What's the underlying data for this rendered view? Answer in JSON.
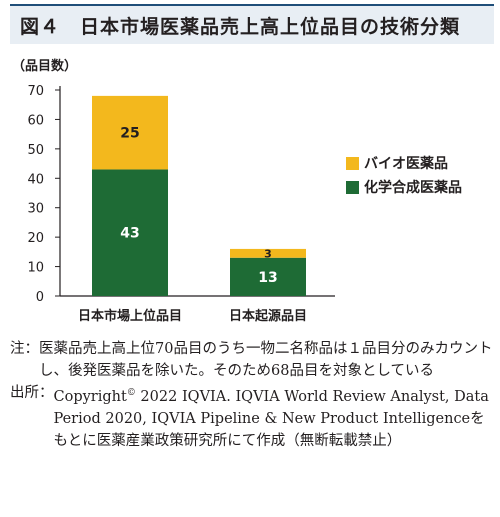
{
  "title": "図４　日本市場医薬品売上高上位品目の技術分類",
  "chart_data": {
    "type": "bar",
    "stacked": true,
    "ylabel": "（品目数）",
    "ylim": [
      0,
      70
    ],
    "yticks": [
      0,
      10,
      20,
      30,
      40,
      50,
      60,
      70
    ],
    "grid": false,
    "legend_position": "right",
    "categories": [
      "日本市場上位品目",
      "日本起源品目"
    ],
    "series": [
      {
        "name": "化学合成医薬品",
        "color": "#1e6b35",
        "values": [
          43,
          13
        ]
      },
      {
        "name": "バイオ医薬品",
        "color": "#f3b81d",
        "values": [
          25,
          3
        ]
      }
    ]
  },
  "notes": {
    "note_head": "注：",
    "note_text": "医薬品売上高上位70品目のうち一物二名称品は１品目分のみカウントし、後発医薬品を除いた。そのため68品目を対象としている",
    "source_head": "出所：",
    "source_copyright": "Copyright",
    "source_copyright_mark": "©",
    "source_text": " 2022 IQVIA. IQVIA World Review Analyst, Data Period 2020, IQVIA Pipeline & New Product Intelligenceをもとに医薬産業政策研究所にて作成（無断転載禁止）"
  }
}
